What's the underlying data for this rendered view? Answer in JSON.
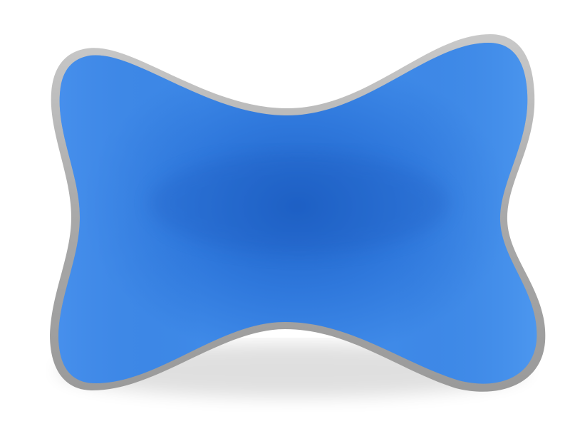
{
  "product": {
    "icon": "bone-shaped-neck-pillow",
    "colors": {
      "fabric": "#3a86e6",
      "fabric_dark": "#1f5fc4",
      "fabric_light": "#4f98f0",
      "piping": "#b8b8b8",
      "piping_dark": "#8a8a8a",
      "background": "#ffffff"
    }
  }
}
